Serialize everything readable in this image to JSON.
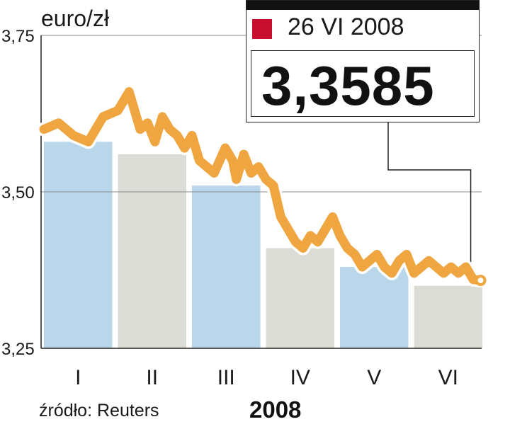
{
  "unit_label": "euro/zł",
  "source": "źródło: Reuters",
  "year": "2008",
  "callout": {
    "date": "26 VI 2008",
    "value": "3,3585"
  },
  "colors": {
    "line": "#f0a640",
    "band_blue": "#b9d6ea",
    "band_gray": "#dcdcd6",
    "marker": "#c8102e",
    "grid": "#888888"
  },
  "chart_data": {
    "type": "line",
    "title": "",
    "xlabel": "",
    "ylabel": "euro/zł",
    "ylim": [
      3.25,
      3.75
    ],
    "yticks": [
      3.75,
      3.5,
      3.25
    ],
    "ytick_labels": [
      "3,75",
      "3,50",
      "3,25"
    ],
    "categories": [
      "I",
      "II",
      "III",
      "IV",
      "V",
      "VI"
    ],
    "monthly_avg": [
      3.58,
      3.56,
      3.51,
      3.41,
      3.38,
      3.35
    ],
    "x": [
      0,
      0.2,
      0.4,
      0.6,
      0.8,
      1.0,
      1.15,
      1.25,
      1.3,
      1.4,
      1.5,
      1.6,
      1.7,
      1.8,
      1.9,
      2.0,
      2.1,
      2.2,
      2.3,
      2.45,
      2.55,
      2.6,
      2.7,
      2.8,
      2.9,
      3.0,
      3.1,
      3.2,
      3.3,
      3.4,
      3.5,
      3.6,
      3.7,
      3.8,
      3.9,
      4.0,
      4.1,
      4.2,
      4.3,
      4.4,
      4.5,
      4.6,
      4.7,
      4.8,
      4.9,
      5.0,
      5.1,
      5.2,
      5.3,
      5.4,
      5.5,
      5.6,
      5.7,
      5.8,
      5.9
    ],
    "y": [
      3.6,
      3.61,
      3.59,
      3.58,
      3.62,
      3.63,
      3.66,
      3.62,
      3.6,
      3.61,
      3.58,
      3.62,
      3.6,
      3.59,
      3.57,
      3.59,
      3.55,
      3.54,
      3.53,
      3.57,
      3.55,
      3.52,
      3.56,
      3.53,
      3.54,
      3.52,
      3.51,
      3.46,
      3.44,
      3.42,
      3.41,
      3.43,
      3.42,
      3.44,
      3.46,
      3.43,
      3.41,
      3.4,
      3.38,
      3.39,
      3.4,
      3.38,
      3.37,
      3.39,
      3.4,
      3.37,
      3.38,
      3.39,
      3.38,
      3.37,
      3.38,
      3.37,
      3.38,
      3.36,
      3.3585
    ]
  }
}
